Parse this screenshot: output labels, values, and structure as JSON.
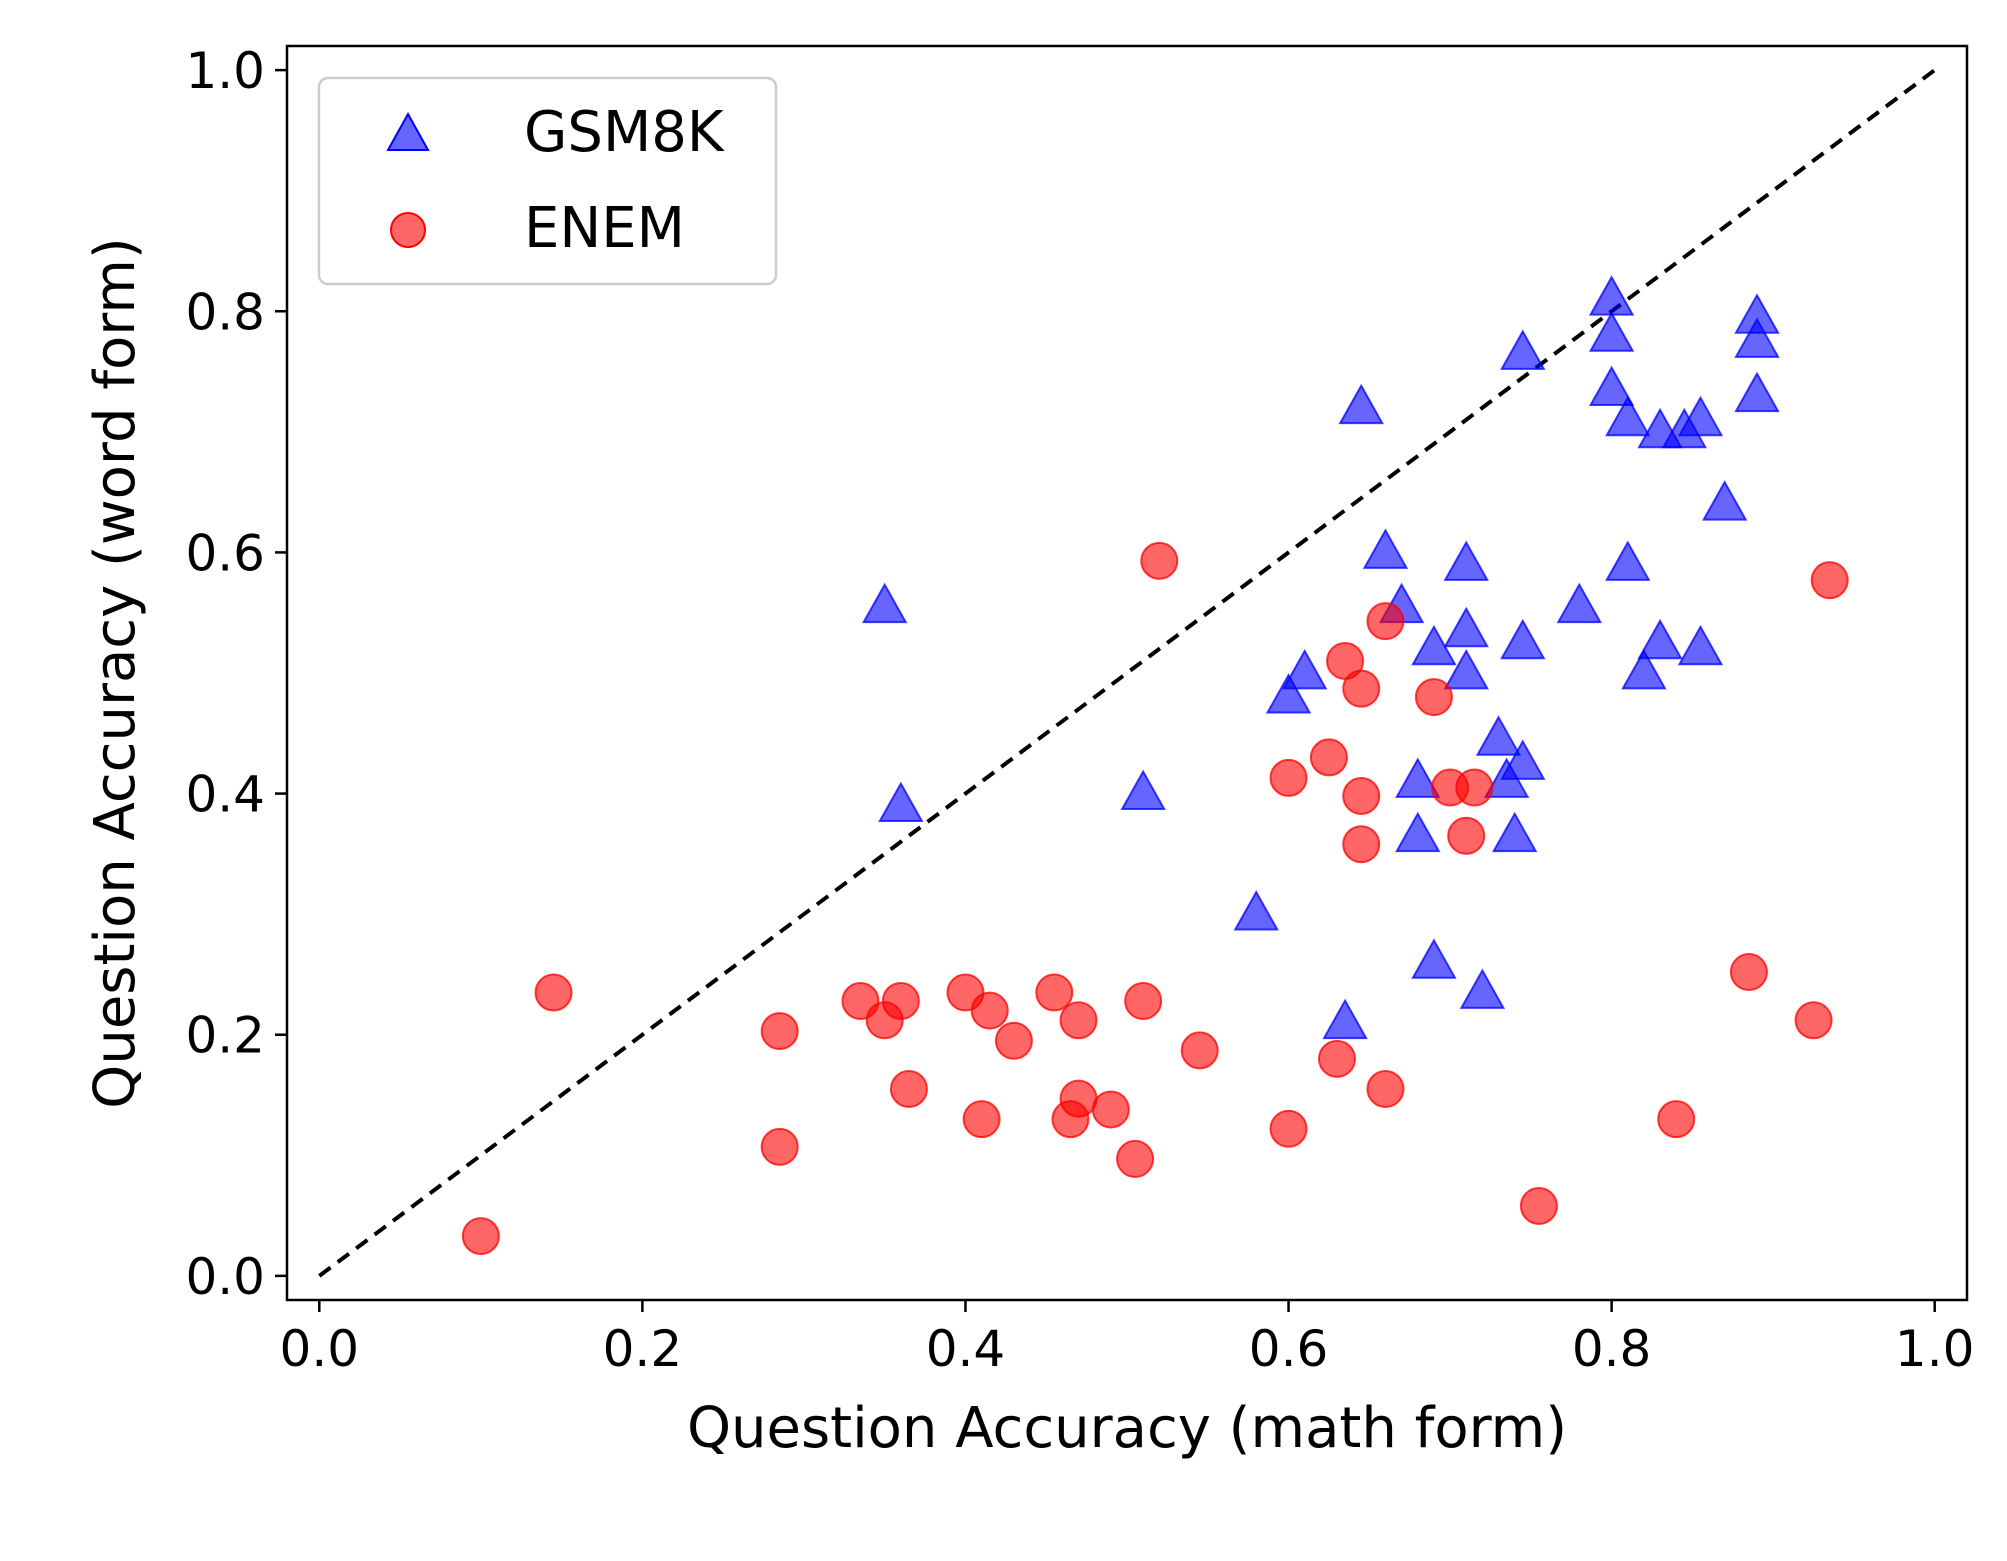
{
  "chart_data": {
    "type": "scatter",
    "xlabel": "Question Accuracy (math form)",
    "ylabel": "Question Accuracy (word form)",
    "xlim": [
      -0.02,
      1.02
    ],
    "ylim": [
      -0.02,
      1.02
    ],
    "x_ticks": [
      "0.0",
      "0.2",
      "0.4",
      "0.6",
      "0.8",
      "1.0"
    ],
    "y_ticks": [
      "0.0",
      "0.2",
      "0.4",
      "0.6",
      "0.8",
      "1.0"
    ],
    "grid": false,
    "legend_position": "top-left",
    "reference_line": {
      "style": "dashed",
      "color": "#000000",
      "from": [
        0,
        0
      ],
      "to": [
        1,
        1
      ]
    },
    "series": [
      {
        "name": "GSM8K",
        "marker": "triangle",
        "color": "#0000ff",
        "points": [
          [
            0.35,
            0.555
          ],
          [
            0.36,
            0.39
          ],
          [
            0.51,
            0.4
          ],
          [
            0.58,
            0.3
          ],
          [
            0.6,
            0.48
          ],
          [
            0.61,
            0.5
          ],
          [
            0.635,
            0.21
          ],
          [
            0.645,
            0.72
          ],
          [
            0.66,
            0.6
          ],
          [
            0.67,
            0.555
          ],
          [
            0.68,
            0.41
          ],
          [
            0.68,
            0.365
          ],
          [
            0.69,
            0.52
          ],
          [
            0.69,
            0.26
          ],
          [
            0.71,
            0.59
          ],
          [
            0.71,
            0.535
          ],
          [
            0.71,
            0.5
          ],
          [
            0.72,
            0.235
          ],
          [
            0.73,
            0.445
          ],
          [
            0.735,
            0.41
          ],
          [
            0.74,
            0.365
          ],
          [
            0.745,
            0.425
          ],
          [
            0.745,
            0.525
          ],
          [
            0.745,
            0.765
          ],
          [
            0.78,
            0.555
          ],
          [
            0.8,
            0.81
          ],
          [
            0.8,
            0.78
          ],
          [
            0.8,
            0.735
          ],
          [
            0.81,
            0.71
          ],
          [
            0.81,
            0.59
          ],
          [
            0.82,
            0.5
          ],
          [
            0.83,
            0.7
          ],
          [
            0.83,
            0.525
          ],
          [
            0.845,
            0.7
          ],
          [
            0.855,
            0.71
          ],
          [
            0.855,
            0.52
          ],
          [
            0.87,
            0.64
          ],
          [
            0.89,
            0.795
          ],
          [
            0.89,
            0.775
          ],
          [
            0.89,
            0.73
          ]
        ]
      },
      {
        "name": "ENEM",
        "marker": "circle",
        "color": "#ff0000",
        "points": [
          [
            0.1,
            0.033
          ],
          [
            0.145,
            0.235
          ],
          [
            0.285,
            0.203
          ],
          [
            0.285,
            0.107
          ],
          [
            0.335,
            0.228
          ],
          [
            0.35,
            0.212
          ],
          [
            0.36,
            0.228
          ],
          [
            0.365,
            0.155
          ],
          [
            0.4,
            0.235
          ],
          [
            0.41,
            0.13
          ],
          [
            0.415,
            0.22
          ],
          [
            0.43,
            0.195
          ],
          [
            0.455,
            0.235
          ],
          [
            0.465,
            0.13
          ],
          [
            0.47,
            0.147
          ],
          [
            0.47,
            0.212
          ],
          [
            0.49,
            0.138
          ],
          [
            0.505,
            0.097
          ],
          [
            0.51,
            0.228
          ],
          [
            0.52,
            0.593
          ],
          [
            0.545,
            0.187
          ],
          [
            0.6,
            0.413
          ],
          [
            0.6,
            0.122
          ],
          [
            0.625,
            0.43
          ],
          [
            0.63,
            0.18
          ],
          [
            0.635,
            0.51
          ],
          [
            0.645,
            0.487
          ],
          [
            0.645,
            0.398
          ],
          [
            0.645,
            0.358
          ],
          [
            0.66,
            0.543
          ],
          [
            0.66,
            0.155
          ],
          [
            0.69,
            0.48
          ],
          [
            0.7,
            0.405
          ],
          [
            0.71,
            0.365
          ],
          [
            0.715,
            0.405
          ],
          [
            0.755,
            0.058
          ],
          [
            0.84,
            0.13
          ],
          [
            0.885,
            0.252
          ],
          [
            0.925,
            0.212
          ],
          [
            0.935,
            0.577
          ]
        ]
      }
    ]
  }
}
